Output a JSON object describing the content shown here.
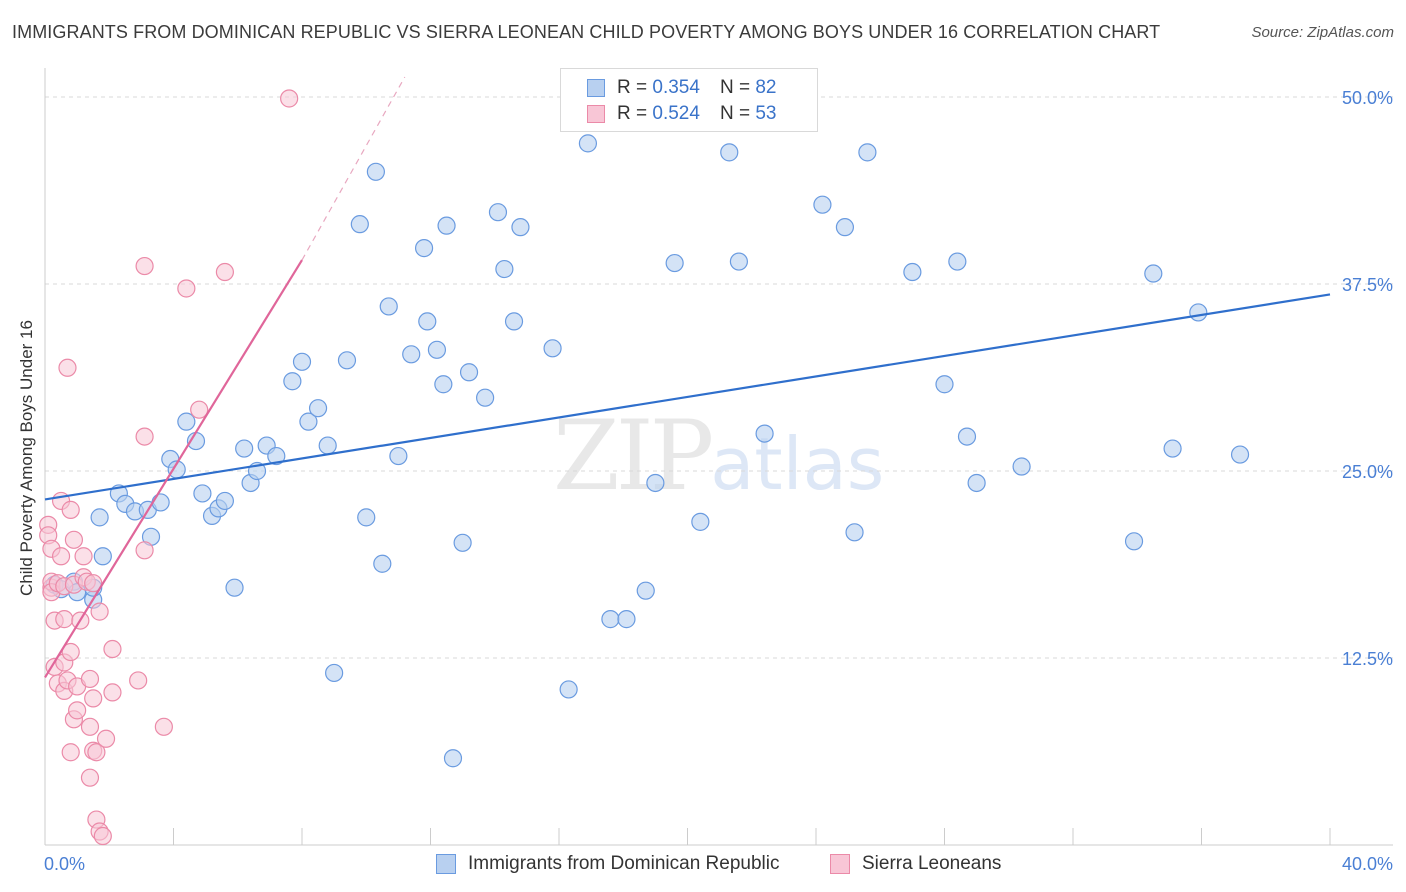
{
  "header": {
    "title": "IMMIGRANTS FROM DOMINICAN REPUBLIC VS SIERRA LEONEAN CHILD POVERTY AMONG BOYS UNDER 16 CORRELATION CHART",
    "source": "Source: ZipAtlas.com"
  },
  "watermark": {
    "zip": "ZIP",
    "atlas": "atlas"
  },
  "legend": {
    "r_label": "R =",
    "n_label": "N =",
    "series": [
      {
        "r": "0.354",
        "n": "82"
      },
      {
        "r": "0.524",
        "n": "53"
      }
    ]
  },
  "bottom_legend": {
    "series1": "Immigrants from Dominican Republic",
    "series2": "Sierra Leoneans"
  },
  "colors": {
    "blue_fill": "#b8d0f0",
    "blue_stroke": "#6a9be0",
    "blue_line": "#2f6fcc",
    "pink_fill": "#f8c6d6",
    "pink_stroke": "#eb8aa8",
    "pink_line": "#e0669a",
    "grid": "#d9d9d9",
    "tick_text": "#4a7fd4"
  },
  "chart_data": {
    "type": "scatter",
    "title": "IMMIGRANTS FROM DOMINICAN REPUBLIC VS SIERRA LEONEAN CHILD POVERTY AMONG BOYS UNDER 16 CORRELATION CHART",
    "xlabel": "",
    "ylabel": "Child Poverty Among Boys Under 16",
    "xlim": [
      0,
      40
    ],
    "ylim": [
      0,
      50
    ],
    "x_tick_labels": [
      "0.0%",
      "40.0%"
    ],
    "y_ticks": [
      12.5,
      25.0,
      37.5,
      50.0
    ],
    "y_tick_labels": [
      "12.5%",
      "25.0%",
      "37.5%",
      "50.0%"
    ],
    "series": [
      {
        "name": "Immigrants from Dominican Republic",
        "r": 0.354,
        "n": 82,
        "trend": {
          "x": [
            0,
            40
          ],
          "y": [
            23.1,
            36.8
          ]
        },
        "points": [
          [
            0.3,
            17.4
          ],
          [
            0.5,
            17.1
          ],
          [
            0.9,
            17.6
          ],
          [
            1.0,
            16.9
          ],
          [
            1.5,
            16.4
          ],
          [
            1.7,
            21.9
          ],
          [
            1.8,
            19.3
          ],
          [
            1.5,
            17.2
          ],
          [
            2.3,
            23.5
          ],
          [
            2.5,
            22.8
          ],
          [
            2.8,
            22.3
          ],
          [
            3.2,
            22.4
          ],
          [
            3.3,
            20.6
          ],
          [
            3.6,
            22.9
          ],
          [
            3.9,
            25.8
          ],
          [
            4.1,
            25.1
          ],
          [
            4.4,
            28.3
          ],
          [
            4.7,
            27.0
          ],
          [
            4.9,
            23.5
          ],
          [
            5.2,
            22.0
          ],
          [
            5.4,
            22.5
          ],
          [
            5.6,
            23.0
          ],
          [
            5.9,
            17.2
          ],
          [
            6.2,
            26.5
          ],
          [
            6.4,
            24.2
          ],
          [
            6.6,
            25.0
          ],
          [
            6.9,
            26.7
          ],
          [
            7.2,
            26.0
          ],
          [
            7.7,
            31.0
          ],
          [
            8.0,
            32.3
          ],
          [
            8.2,
            28.3
          ],
          [
            8.5,
            29.2
          ],
          [
            8.8,
            26.7
          ],
          [
            9.0,
            11.5
          ],
          [
            9.4,
            32.4
          ],
          [
            9.8,
            41.5
          ],
          [
            10.0,
            21.9
          ],
          [
            10.3,
            45.0
          ],
          [
            10.5,
            18.8
          ],
          [
            10.7,
            36.0
          ],
          [
            11.0,
            26.0
          ],
          [
            11.4,
            32.8
          ],
          [
            11.8,
            39.9
          ],
          [
            11.9,
            35.0
          ],
          [
            12.2,
            33.1
          ],
          [
            12.4,
            30.8
          ],
          [
            12.5,
            41.4
          ],
          [
            12.7,
            5.8
          ],
          [
            13.0,
            20.2
          ],
          [
            13.2,
            31.6
          ],
          [
            13.7,
            29.9
          ],
          [
            14.1,
            42.3
          ],
          [
            14.3,
            38.5
          ],
          [
            14.6,
            35.0
          ],
          [
            14.8,
            41.3
          ],
          [
            15.8,
            33.2
          ],
          [
            16.3,
            10.4
          ],
          [
            16.9,
            46.9
          ],
          [
            17.6,
            15.1
          ],
          [
            18.1,
            15.1
          ],
          [
            18.7,
            17.0
          ],
          [
            19.0,
            24.2
          ],
          [
            19.6,
            38.9
          ],
          [
            20.4,
            21.6
          ],
          [
            21.3,
            46.3
          ],
          [
            21.6,
            39.0
          ],
          [
            22.4,
            27.5
          ],
          [
            24.2,
            42.8
          ],
          [
            24.9,
            41.3
          ],
          [
            25.2,
            20.9
          ],
          [
            25.6,
            46.3
          ],
          [
            27.0,
            38.3
          ],
          [
            28.0,
            30.8
          ],
          [
            28.4,
            39.0
          ],
          [
            28.7,
            27.3
          ],
          [
            29.0,
            24.2
          ],
          [
            30.4,
            25.3
          ],
          [
            33.9,
            20.3
          ],
          [
            34.5,
            38.2
          ],
          [
            35.1,
            26.5
          ],
          [
            35.9,
            35.6
          ],
          [
            37.2,
            26.1
          ]
        ]
      },
      {
        "name": "Sierra Leoneans",
        "r": 0.524,
        "n": 53,
        "trend": {
          "x": [
            0,
            8.0
          ],
          "y": [
            11.2,
            39.1
          ]
        },
        "trend_dashed": {
          "x": [
            8.0,
            11.2
          ],
          "y": [
            39.1,
            50.0
          ]
        },
        "points": [
          [
            0.1,
            21.4
          ],
          [
            0.1,
            20.7
          ],
          [
            0.2,
            17.2
          ],
          [
            0.2,
            17.6
          ],
          [
            0.2,
            19.8
          ],
          [
            0.2,
            16.9
          ],
          [
            0.3,
            15.0
          ],
          [
            0.3,
            11.9
          ],
          [
            0.4,
            10.8
          ],
          [
            0.4,
            17.5
          ],
          [
            0.5,
            19.3
          ],
          [
            0.5,
            23.0
          ],
          [
            0.6,
            10.3
          ],
          [
            0.6,
            15.1
          ],
          [
            0.6,
            17.3
          ],
          [
            0.6,
            12.2
          ],
          [
            0.7,
            31.9
          ],
          [
            0.7,
            11.0
          ],
          [
            0.8,
            12.9
          ],
          [
            0.8,
            6.2
          ],
          [
            0.8,
            22.4
          ],
          [
            0.9,
            20.4
          ],
          [
            0.9,
            8.4
          ],
          [
            0.9,
            17.4
          ],
          [
            1.0,
            10.6
          ],
          [
            1.0,
            9.0
          ],
          [
            1.1,
            15.0
          ],
          [
            1.2,
            17.9
          ],
          [
            1.2,
            19.3
          ],
          [
            1.3,
            17.6
          ],
          [
            1.4,
            7.9
          ],
          [
            1.4,
            11.1
          ],
          [
            1.4,
            4.5
          ],
          [
            1.5,
            17.5
          ],
          [
            1.5,
            9.8
          ],
          [
            1.5,
            6.3
          ],
          [
            1.6,
            6.2
          ],
          [
            1.6,
            1.7
          ],
          [
            1.7,
            15.6
          ],
          [
            1.7,
            0.9
          ],
          [
            1.8,
            0.6
          ],
          [
            1.9,
            7.1
          ],
          [
            2.1,
            13.1
          ],
          [
            2.1,
            10.2
          ],
          [
            2.9,
            11.0
          ],
          [
            3.1,
            27.3
          ],
          [
            3.1,
            38.7
          ],
          [
            3.1,
            19.7
          ],
          [
            3.7,
            7.9
          ],
          [
            4.4,
            37.2
          ],
          [
            4.8,
            29.1
          ],
          [
            5.6,
            38.3
          ],
          [
            7.6,
            49.9
          ]
        ]
      }
    ]
  }
}
